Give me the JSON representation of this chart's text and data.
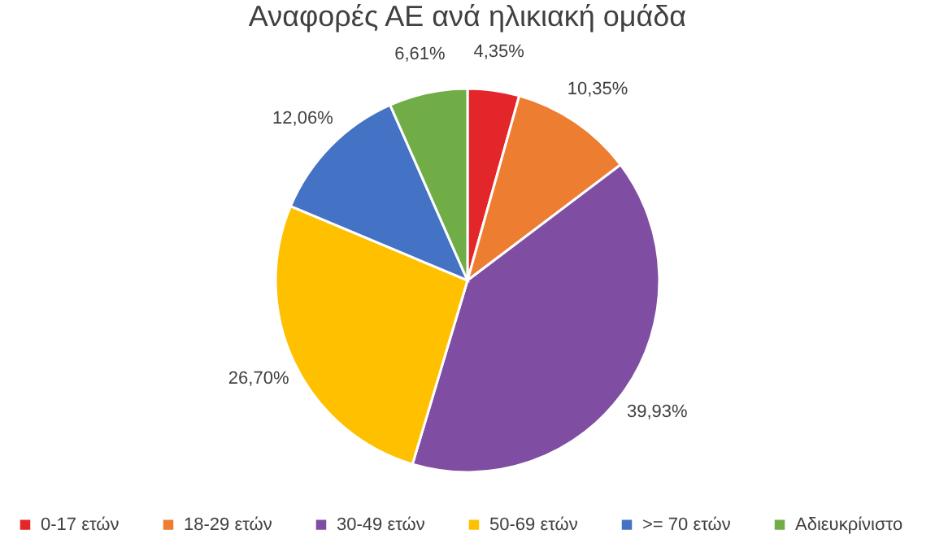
{
  "chart_data": {
    "type": "pie",
    "title": "Αναφορές ΑΕ ανά ηλικιακή ομάδα",
    "categories": [
      "0-17 ετών",
      "18-29 ετών",
      "30-49 ετών",
      "50-69 ετών",
      ">= 70 ετών",
      "Αδιευκρίνιστο"
    ],
    "values": [
      4.35,
      10.35,
      39.93,
      26.7,
      12.06,
      6.61
    ],
    "value_labels": [
      "4,35%",
      "10,35%",
      "39,93%",
      "26,70%",
      "12,06%",
      "6,61%"
    ],
    "colors": [
      "#e3262a",
      "#ed7d31",
      "#7f4ea3",
      "#ffc000",
      "#4472c4",
      "#70ad47"
    ],
    "legend": "bottom"
  }
}
